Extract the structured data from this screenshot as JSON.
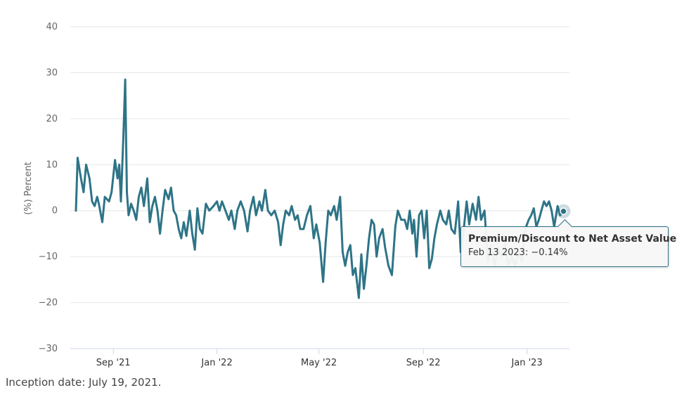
{
  "chart_data": {
    "type": "line",
    "ylabel": "(%) Percent",
    "ylim": [
      -30,
      40
    ],
    "y_ticks": [
      "40",
      "30",
      "20",
      "10",
      "0",
      "−10",
      "−20",
      "−30"
    ],
    "y_tick_values": [
      40,
      30,
      20,
      10,
      0,
      -10,
      -20,
      -30
    ],
    "x_ticks": [
      "Sep '21",
      "Jan '22",
      "May '22",
      "Sep '22",
      "Jan '23"
    ],
    "x_tick_dates": [
      "2021-09-01",
      "2022-01-01",
      "2022-05-01",
      "2022-09-01",
      "2023-01-01"
    ],
    "xlim": [
      "2021-07-19",
      "2023-02-20"
    ],
    "grid": true,
    "series": [
      {
        "name": "Premium/Discount to Net Asset Value",
        "color": "#2e7487",
        "points": [
          [
            "2021-07-19",
            0
          ],
          [
            "2021-07-21",
            11.5
          ],
          [
            "2021-07-25",
            7
          ],
          [
            "2021-07-28",
            4
          ],
          [
            "2021-07-31",
            10
          ],
          [
            "2021-08-04",
            7
          ],
          [
            "2021-08-07",
            2
          ],
          [
            "2021-08-10",
            1
          ],
          [
            "2021-08-13",
            3
          ],
          [
            "2021-08-15",
            1.5
          ],
          [
            "2021-08-19",
            -2.5
          ],
          [
            "2021-08-22",
            3
          ],
          [
            "2021-08-27",
            2
          ],
          [
            "2021-08-30",
            4
          ],
          [
            "2021-09-03",
            11
          ],
          [
            "2021-09-06",
            7
          ],
          [
            "2021-09-08",
            10
          ],
          [
            "2021-09-10",
            2
          ],
          [
            "2021-09-13",
            17
          ],
          [
            "2021-09-15",
            28.5
          ],
          [
            "2021-09-17",
            4
          ],
          [
            "2021-09-19",
            -1
          ],
          [
            "2021-09-22",
            1.5
          ],
          [
            "2021-09-25",
            0
          ],
          [
            "2021-09-28",
            -2
          ],
          [
            "2021-10-01",
            3
          ],
          [
            "2021-10-04",
            5
          ],
          [
            "2021-10-07",
            1
          ],
          [
            "2021-10-11",
            7
          ],
          [
            "2021-10-14",
            -2.5
          ],
          [
            "2021-10-17",
            1
          ],
          [
            "2021-10-20",
            3
          ],
          [
            "2021-10-23",
            0
          ],
          [
            "2021-10-26",
            -5
          ],
          [
            "2021-10-29",
            0
          ],
          [
            "2021-11-01",
            4.5
          ],
          [
            "2021-11-05",
            2.5
          ],
          [
            "2021-11-08",
            5
          ],
          [
            "2021-11-11",
            0
          ],
          [
            "2021-11-14",
            -1
          ],
          [
            "2021-11-17",
            -4
          ],
          [
            "2021-11-20",
            -6
          ],
          [
            "2021-11-23",
            -2.5
          ],
          [
            "2021-11-26",
            -5.5
          ],
          [
            "2021-11-30",
            0
          ],
          [
            "2021-12-03",
            -5
          ],
          [
            "2021-12-06",
            -8.5
          ],
          [
            "2021-12-09",
            0.5
          ],
          [
            "2021-12-12",
            -4
          ],
          [
            "2021-12-15",
            -5
          ],
          [
            "2021-12-19",
            1.5
          ],
          [
            "2021-12-23",
            0
          ],
          [
            "2021-12-28",
            1
          ],
          [
            "2022-01-01",
            2
          ],
          [
            "2022-01-04",
            0
          ],
          [
            "2022-01-07",
            2
          ],
          [
            "2022-01-11",
            0
          ],
          [
            "2022-01-15",
            -2
          ],
          [
            "2022-01-18",
            0
          ],
          [
            "2022-01-22",
            -4
          ],
          [
            "2022-01-25",
            0
          ],
          [
            "2022-01-29",
            2
          ],
          [
            "2022-02-02",
            0
          ],
          [
            "2022-02-06",
            -4.5
          ],
          [
            "2022-02-09",
            0
          ],
          [
            "2022-02-13",
            3
          ],
          [
            "2022-02-16",
            -1
          ],
          [
            "2022-02-20",
            2
          ],
          [
            "2022-02-23",
            0
          ],
          [
            "2022-02-27",
            4.5
          ],
          [
            "2022-03-02",
            0
          ],
          [
            "2022-03-06",
            -1
          ],
          [
            "2022-03-10",
            0
          ],
          [
            "2022-03-14",
            -2.5
          ],
          [
            "2022-03-17",
            -7.5
          ],
          [
            "2022-03-20",
            -3
          ],
          [
            "2022-03-23",
            0
          ],
          [
            "2022-03-27",
            -1
          ],
          [
            "2022-03-30",
            1
          ],
          [
            "2022-04-03",
            -2
          ],
          [
            "2022-04-06",
            -1
          ],
          [
            "2022-04-09",
            -4
          ],
          [
            "2022-04-13",
            -4
          ],
          [
            "2022-04-17",
            -1
          ],
          [
            "2022-04-21",
            1
          ],
          [
            "2022-04-25",
            -6
          ],
          [
            "2022-04-28",
            -3
          ],
          [
            "2022-05-02",
            -7
          ],
          [
            "2022-05-06",
            -15.5
          ],
          [
            "2022-05-09",
            -7
          ],
          [
            "2022-05-12",
            0
          ],
          [
            "2022-05-15",
            -1
          ],
          [
            "2022-05-19",
            1
          ],
          [
            "2022-05-22",
            -2
          ],
          [
            "2022-05-26",
            3
          ],
          [
            "2022-05-29",
            -9
          ],
          [
            "2022-06-01",
            -12
          ],
          [
            "2022-06-04",
            -9
          ],
          [
            "2022-06-07",
            -7.5
          ],
          [
            "2022-06-10",
            -14
          ],
          [
            "2022-06-13",
            -12.5
          ],
          [
            "2022-06-17",
            -19
          ],
          [
            "2022-06-20",
            -9.5
          ],
          [
            "2022-06-23",
            -17
          ],
          [
            "2022-06-26",
            -12
          ],
          [
            "2022-06-29",
            -6
          ],
          [
            "2022-07-02",
            -2
          ],
          [
            "2022-07-05",
            -3
          ],
          [
            "2022-07-08",
            -10
          ],
          [
            "2022-07-11",
            -6
          ],
          [
            "2022-07-15",
            -4
          ],
          [
            "2022-07-18",
            -8
          ],
          [
            "2022-07-22",
            -12
          ],
          [
            "2022-07-26",
            -14
          ],
          [
            "2022-07-30",
            -3.5
          ],
          [
            "2022-08-02",
            0
          ],
          [
            "2022-08-06",
            -2
          ],
          [
            "2022-08-10",
            -2
          ],
          [
            "2022-08-13",
            -4
          ],
          [
            "2022-08-16",
            0
          ],
          [
            "2022-08-19",
            -5
          ],
          [
            "2022-08-21",
            -2
          ],
          [
            "2022-08-24",
            -10
          ],
          [
            "2022-08-27",
            -1
          ],
          [
            "2022-08-30",
            0
          ],
          [
            "2022-09-02",
            -6
          ],
          [
            "2022-09-05",
            0
          ],
          [
            "2022-09-08",
            -12.5
          ],
          [
            "2022-09-11",
            -10.5
          ],
          [
            "2022-09-14",
            -6
          ],
          [
            "2022-09-17",
            -3
          ],
          [
            "2022-09-21",
            0
          ],
          [
            "2022-09-24",
            -2
          ],
          [
            "2022-09-28",
            -3
          ],
          [
            "2022-10-01",
            0
          ],
          [
            "2022-10-04",
            -4
          ],
          [
            "2022-10-08",
            -5
          ],
          [
            "2022-10-12",
            2
          ],
          [
            "2022-10-15",
            -9
          ],
          [
            "2022-10-18",
            -5
          ],
          [
            "2022-10-22",
            2
          ],
          [
            "2022-10-25",
            -3
          ],
          [
            "2022-10-29",
            1.5
          ],
          [
            "2022-11-02",
            -2
          ],
          [
            "2022-11-05",
            3
          ],
          [
            "2022-11-08",
            -2
          ],
          [
            "2022-11-12",
            0
          ],
          [
            "2022-11-16",
            -11
          ],
          [
            "2022-11-20",
            -7.5
          ],
          [
            "2022-11-24",
            -12
          ],
          [
            "2022-11-28",
            -8
          ],
          [
            "2022-12-02",
            -10
          ],
          [
            "2022-12-06",
            -7
          ],
          [
            "2022-12-10",
            -12
          ],
          [
            "2022-12-14",
            -10
          ],
          [
            "2022-12-18",
            -12
          ],
          [
            "2022-12-22",
            -9
          ],
          [
            "2022-12-26",
            -11
          ],
          [
            "2022-12-30",
            -4
          ],
          [
            "2023-01-03",
            -2
          ],
          [
            "2023-01-06",
            -1
          ],
          [
            "2023-01-09",
            0.5
          ],
          [
            "2023-01-12",
            -3.5
          ],
          [
            "2023-01-15",
            -2
          ],
          [
            "2023-01-18",
            0
          ],
          [
            "2023-01-21",
            2
          ],
          [
            "2023-01-24",
            1
          ],
          [
            "2023-01-27",
            2
          ],
          [
            "2023-01-30",
            0
          ],
          [
            "2023-02-02",
            -3.5
          ],
          [
            "2023-02-06",
            1
          ],
          [
            "2023-02-09",
            -1
          ],
          [
            "2023-02-13",
            -0.14
          ]
        ]
      }
    ],
    "tooltip": {
      "title": "Premium/Discount to Net Asset Value",
      "value": "Feb 13 2023: −0.14%",
      "date": "2023-02-13",
      "y": -0.14
    }
  },
  "footnote": "Inception date: July 19, 2021."
}
